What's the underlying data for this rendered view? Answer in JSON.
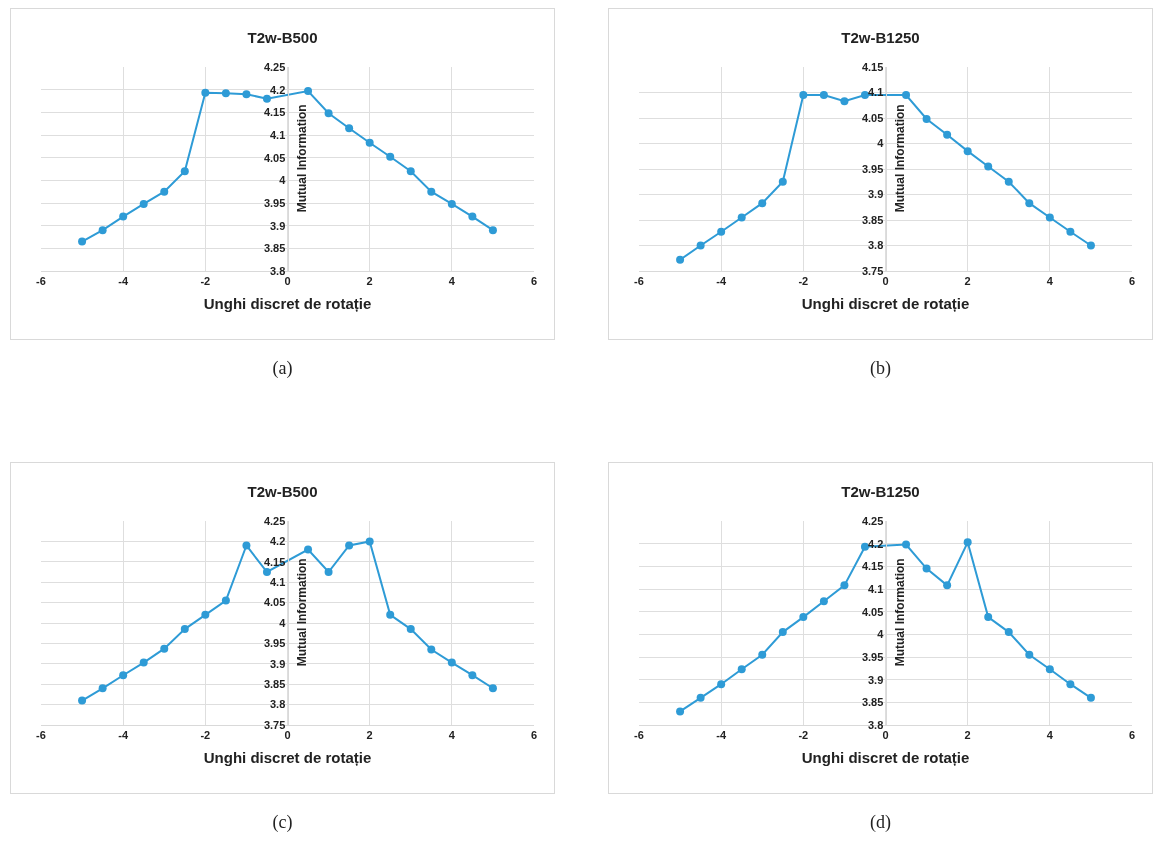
{
  "chart_data": [
    {
      "type": "line",
      "title": "T2w-B500",
      "xlabel": "Unghi discret de rotație",
      "ylabel": "Mutual Information",
      "annotations": [
        "(a)"
      ],
      "x": [
        -5,
        -4.5,
        -4,
        -3.5,
        -3,
        -2.5,
        -2,
        -1.5,
        -1,
        -0.5,
        0.5,
        1,
        1.5,
        2,
        2.5,
        3,
        3.5,
        4,
        4.5,
        5
      ],
      "xlim": [
        -6,
        6
      ],
      "xticks": [
        -6,
        -4,
        -2,
        0,
        2,
        4,
        6
      ],
      "ylim": [
        3.8,
        4.25
      ],
      "yticks": [
        3.8,
        3.85,
        3.9,
        3.95,
        4,
        4.05,
        4.1,
        4.15,
        4.2,
        4.25
      ],
      "grid": true,
      "marker": "circle",
      "line_style": "solid",
      "series": [
        {
          "color": "#2e9bd6",
          "values": [
            3.865,
            3.89,
            3.92,
            3.948,
            3.975,
            4.02,
            4.193,
            4.192,
            4.19,
            4.18,
            4.197,
            4.148,
            4.115,
            4.083,
            4.052,
            4.02,
            3.975,
            3.948,
            3.92,
            3.89
          ]
        }
      ]
    },
    {
      "type": "line",
      "title": "T2w-B1250",
      "xlabel": "Unghi discret de rotație",
      "ylabel": "Mutual Information",
      "annotations": [
        "(b)"
      ],
      "x": [
        -5,
        -4.5,
        -4,
        -3.5,
        -3,
        -2.5,
        -2,
        -1.5,
        -1,
        -0.5,
        0.5,
        1,
        1.5,
        2,
        2.5,
        3,
        3.5,
        4,
        4.5,
        5
      ],
      "xlim": [
        -6,
        6
      ],
      "xticks": [
        -6,
        -4,
        -2,
        0,
        2,
        4,
        6
      ],
      "ylim": [
        3.75,
        4.15
      ],
      "yticks": [
        3.75,
        3.8,
        3.85,
        3.9,
        3.95,
        4,
        4.05,
        4.1,
        4.15
      ],
      "grid": true,
      "marker": "circle",
      "line_style": "solid",
      "series": [
        {
          "color": "#2e9bd6",
          "values": [
            3.772,
            3.8,
            3.827,
            3.855,
            3.883,
            3.925,
            4.095,
            4.095,
            4.083,
            4.095,
            4.095,
            4.048,
            4.017,
            3.985,
            3.955,
            3.925,
            3.883,
            3.855,
            3.827,
            3.8
          ]
        }
      ]
    },
    {
      "type": "line",
      "title": "T2w-B500",
      "xlabel": "Unghi discret de rotație",
      "ylabel": "Mutual Information",
      "annotations": [
        "(c)"
      ],
      "x": [
        -5,
        -4.5,
        -4,
        -3.5,
        -3,
        -2.5,
        -2,
        -1.5,
        -1,
        -0.5,
        0.5,
        1,
        1.5,
        2,
        2.5,
        3,
        3.5,
        4,
        4.5,
        5
      ],
      "xlim": [
        -6,
        6
      ],
      "xticks": [
        -6,
        -4,
        -2,
        0,
        2,
        4,
        6
      ],
      "ylim": [
        3.75,
        4.25
      ],
      "yticks": [
        3.75,
        3.8,
        3.85,
        3.9,
        3.95,
        4,
        4.05,
        4.1,
        4.15,
        4.2,
        4.25
      ],
      "grid": true,
      "marker": "circle",
      "line_style": "solid",
      "series": [
        {
          "color": "#2e9bd6",
          "values": [
            3.81,
            3.84,
            3.872,
            3.903,
            3.937,
            3.985,
            4.02,
            4.055,
            4.19,
            4.125,
            4.18,
            4.125,
            4.19,
            4.2,
            4.02,
            3.985,
            3.935,
            3.903,
            3.872,
            3.84
          ]
        }
      ]
    },
    {
      "type": "line",
      "title": "T2w-B1250",
      "xlabel": "Unghi discret de rotație",
      "ylabel": "Mutual Information",
      "annotations": [
        "(d)"
      ],
      "x": [
        -5,
        -4.5,
        -4,
        -3.5,
        -3,
        -2.5,
        -2,
        -1.5,
        -1,
        -0.5,
        0.5,
        1,
        1.5,
        2,
        2.5,
        3,
        3.5,
        4,
        4.5,
        5
      ],
      "xlim": [
        -6,
        6
      ],
      "xticks": [
        -6,
        -4,
        -2,
        0,
        2,
        4,
        6
      ],
      "ylim": [
        3.8,
        4.25
      ],
      "yticks": [
        3.8,
        3.85,
        3.9,
        3.95,
        4,
        4.05,
        4.1,
        4.15,
        4.2,
        4.25
      ],
      "grid": true,
      "marker": "circle",
      "line_style": "solid",
      "series": [
        {
          "color": "#2e9bd6",
          "values": [
            3.83,
            3.86,
            3.89,
            3.923,
            3.955,
            4.005,
            4.038,
            4.073,
            4.108,
            4.193,
            4.198,
            4.145,
            4.108,
            4.203,
            4.038,
            4.005,
            3.955,
            3.923,
            3.89,
            3.86
          ]
        }
      ]
    }
  ]
}
